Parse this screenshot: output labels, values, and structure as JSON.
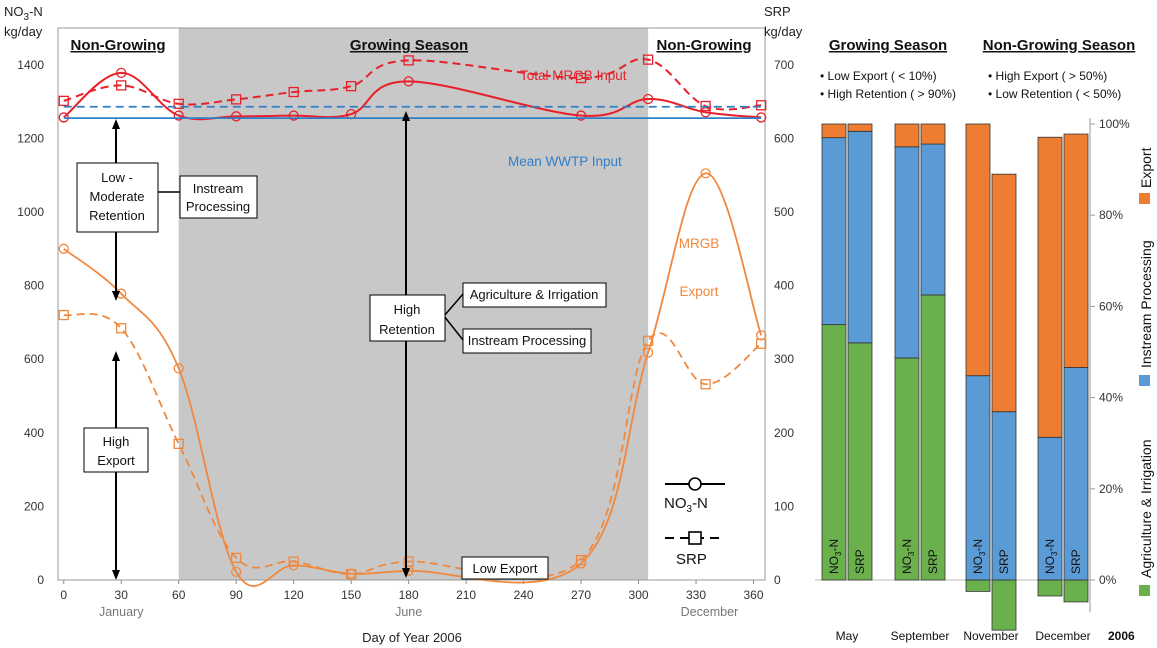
{
  "left_chart": {
    "y_left_label": [
      "NO3-N",
      "kg/day"
    ],
    "y_right_label": [
      "SRP",
      "kg/day"
    ],
    "x_label": "Day of Year 2006",
    "x_ticks": [
      0,
      30,
      60,
      90,
      120,
      150,
      180,
      210,
      240,
      270,
      300,
      330,
      360
    ],
    "y_left_ticks": [
      0,
      200,
      400,
      600,
      800,
      1000,
      1200,
      1400
    ],
    "y_right_ticks": [
      0,
      100,
      200,
      300,
      400,
      500,
      600,
      700
    ],
    "months": [
      {
        "day": 30,
        "label": "January"
      },
      {
        "day": 180,
        "label": "June"
      },
      {
        "day": 337,
        "label": "December"
      }
    ],
    "sections": {
      "left": "Non-Growing",
      "middle": "Growing Season",
      "right": "Non-Growing"
    },
    "growing_season_days": [
      60,
      305
    ],
    "labels": {
      "total_input": "Total MRGB Input",
      "mean_wwtp": "Mean WWTP Input",
      "mrgb_export": [
        "MRGB",
        "Export"
      ],
      "low_export": "Low Export"
    },
    "boxes": {
      "low_moderate": [
        "Low -",
        "Moderate",
        "Retention"
      ],
      "instream_left": [
        "Instream",
        "Processing"
      ],
      "high_export": [
        "High",
        "Export"
      ],
      "high_retention": [
        "High",
        "Retention"
      ],
      "agri": "Agriculture & Irrigation",
      "instream_mid": "Instream Processing"
    },
    "legend": {
      "no3": "NO3-N",
      "srp": "SRP"
    },
    "colors": {
      "input": "#e8202a",
      "export": "#f0883e",
      "wwtp": "#2f80c8",
      "growing": "#c8c8c8"
    }
  },
  "chart_data": [
    {
      "type": "line",
      "title": "",
      "xlabel": "Day of Year 2006",
      "ylabel": "NO3-N kg/day",
      "y2label": "SRP kg/day",
      "xlim": [
        -3,
        366
      ],
      "ylim": [
        0,
        1500
      ],
      "y2lim": [
        0,
        750
      ],
      "series": [
        {
          "name": "Total MRGB Input",
          "axis": "left",
          "x": [
            0,
            30,
            60,
            90,
            120,
            150,
            180,
            270,
            305,
            335,
            364
          ],
          "values": [
            1257,
            1378,
            1262,
            1260,
            1262,
            1266,
            1355,
            1262,
            1307,
            1271,
            1257
          ]
        },
        {
          "name": "Total MRGB Input",
          "axis": "right",
          "x": [
            0,
            30,
            60,
            90,
            120,
            150,
            180,
            270,
            305,
            335,
            364
          ],
          "values": [
            651,
            672,
            647,
            653,
            663,
            671,
            706,
            682,
            707,
            644,
            645
          ]
        },
        {
          "name": "MRGB Export",
          "axis": "left",
          "x": [
            0,
            30,
            60,
            90,
            120,
            150,
            180,
            270,
            305,
            335,
            364
          ],
          "values": [
            900,
            778,
            575,
            22,
            40,
            17,
            25,
            45,
            618,
            1105,
            665
          ]
        },
        {
          "name": "MRGB Export",
          "axis": "right",
          "x": [
            0,
            30,
            60,
            90,
            120,
            150,
            180,
            270,
            305,
            335,
            364
          ],
          "values": [
            360,
            342,
            185,
            30,
            25,
            8,
            25,
            27,
            325,
            266,
            321
          ]
        },
        {
          "name": "Mean WWTP Input",
          "axis": "left",
          "x": [
            0,
            364
          ],
          "values": [
            1255,
            1255
          ]
        },
        {
          "name": "Mean WWTP Input",
          "axis": "right",
          "x": [
            0,
            364
          ],
          "values": [
            643,
            643
          ]
        }
      ]
    },
    {
      "type": "bar",
      "title": "2006",
      "ylabel": "",
      "ylim": [
        -0.11,
        1.0
      ],
      "y_ticks": [
        "0%",
        "20%",
        "40%",
        "60%",
        "80%",
        "100%"
      ],
      "groups": [
        "May",
        "September",
        "November",
        "December"
      ],
      "bar_labels": [
        "NO3-N",
        "SRP"
      ],
      "series": [
        {
          "name": "Agriculture & Irrigation",
          "values": [
            [
              0.56,
              0.52
            ],
            [
              0.487,
              0.625
            ],
            [
              -0.025,
              -0.11
            ],
            [
              -0.035,
              -0.048
            ]
          ]
        },
        {
          "name": "Instream Processing",
          "values": [
            [
              0.41,
              0.464
            ],
            [
              0.463,
              0.331
            ],
            [
              0.448,
              0.369
            ],
            [
              0.313,
              0.466
            ]
          ]
        },
        {
          "name": "Export",
          "values": [
            [
              0.03,
              0.016
            ],
            [
              0.05,
              0.044
            ],
            [
              0.552,
              0.521
            ],
            [
              0.658,
              0.512
            ]
          ]
        }
      ],
      "sections": [
        "Growing Season",
        "Non-Growing Season"
      ],
      "notes": {
        "growing": [
          "Low Export ( < 10%)",
          "High Retention ( > 90%)"
        ],
        "nongrowing": [
          "High Export ( > 50%)",
          "Low Retention ( < 50%)"
        ]
      },
      "colors": {
        "agri": "#6ab04c",
        "instream": "#5b9bd5",
        "export": "#ed7d31"
      }
    }
  ]
}
